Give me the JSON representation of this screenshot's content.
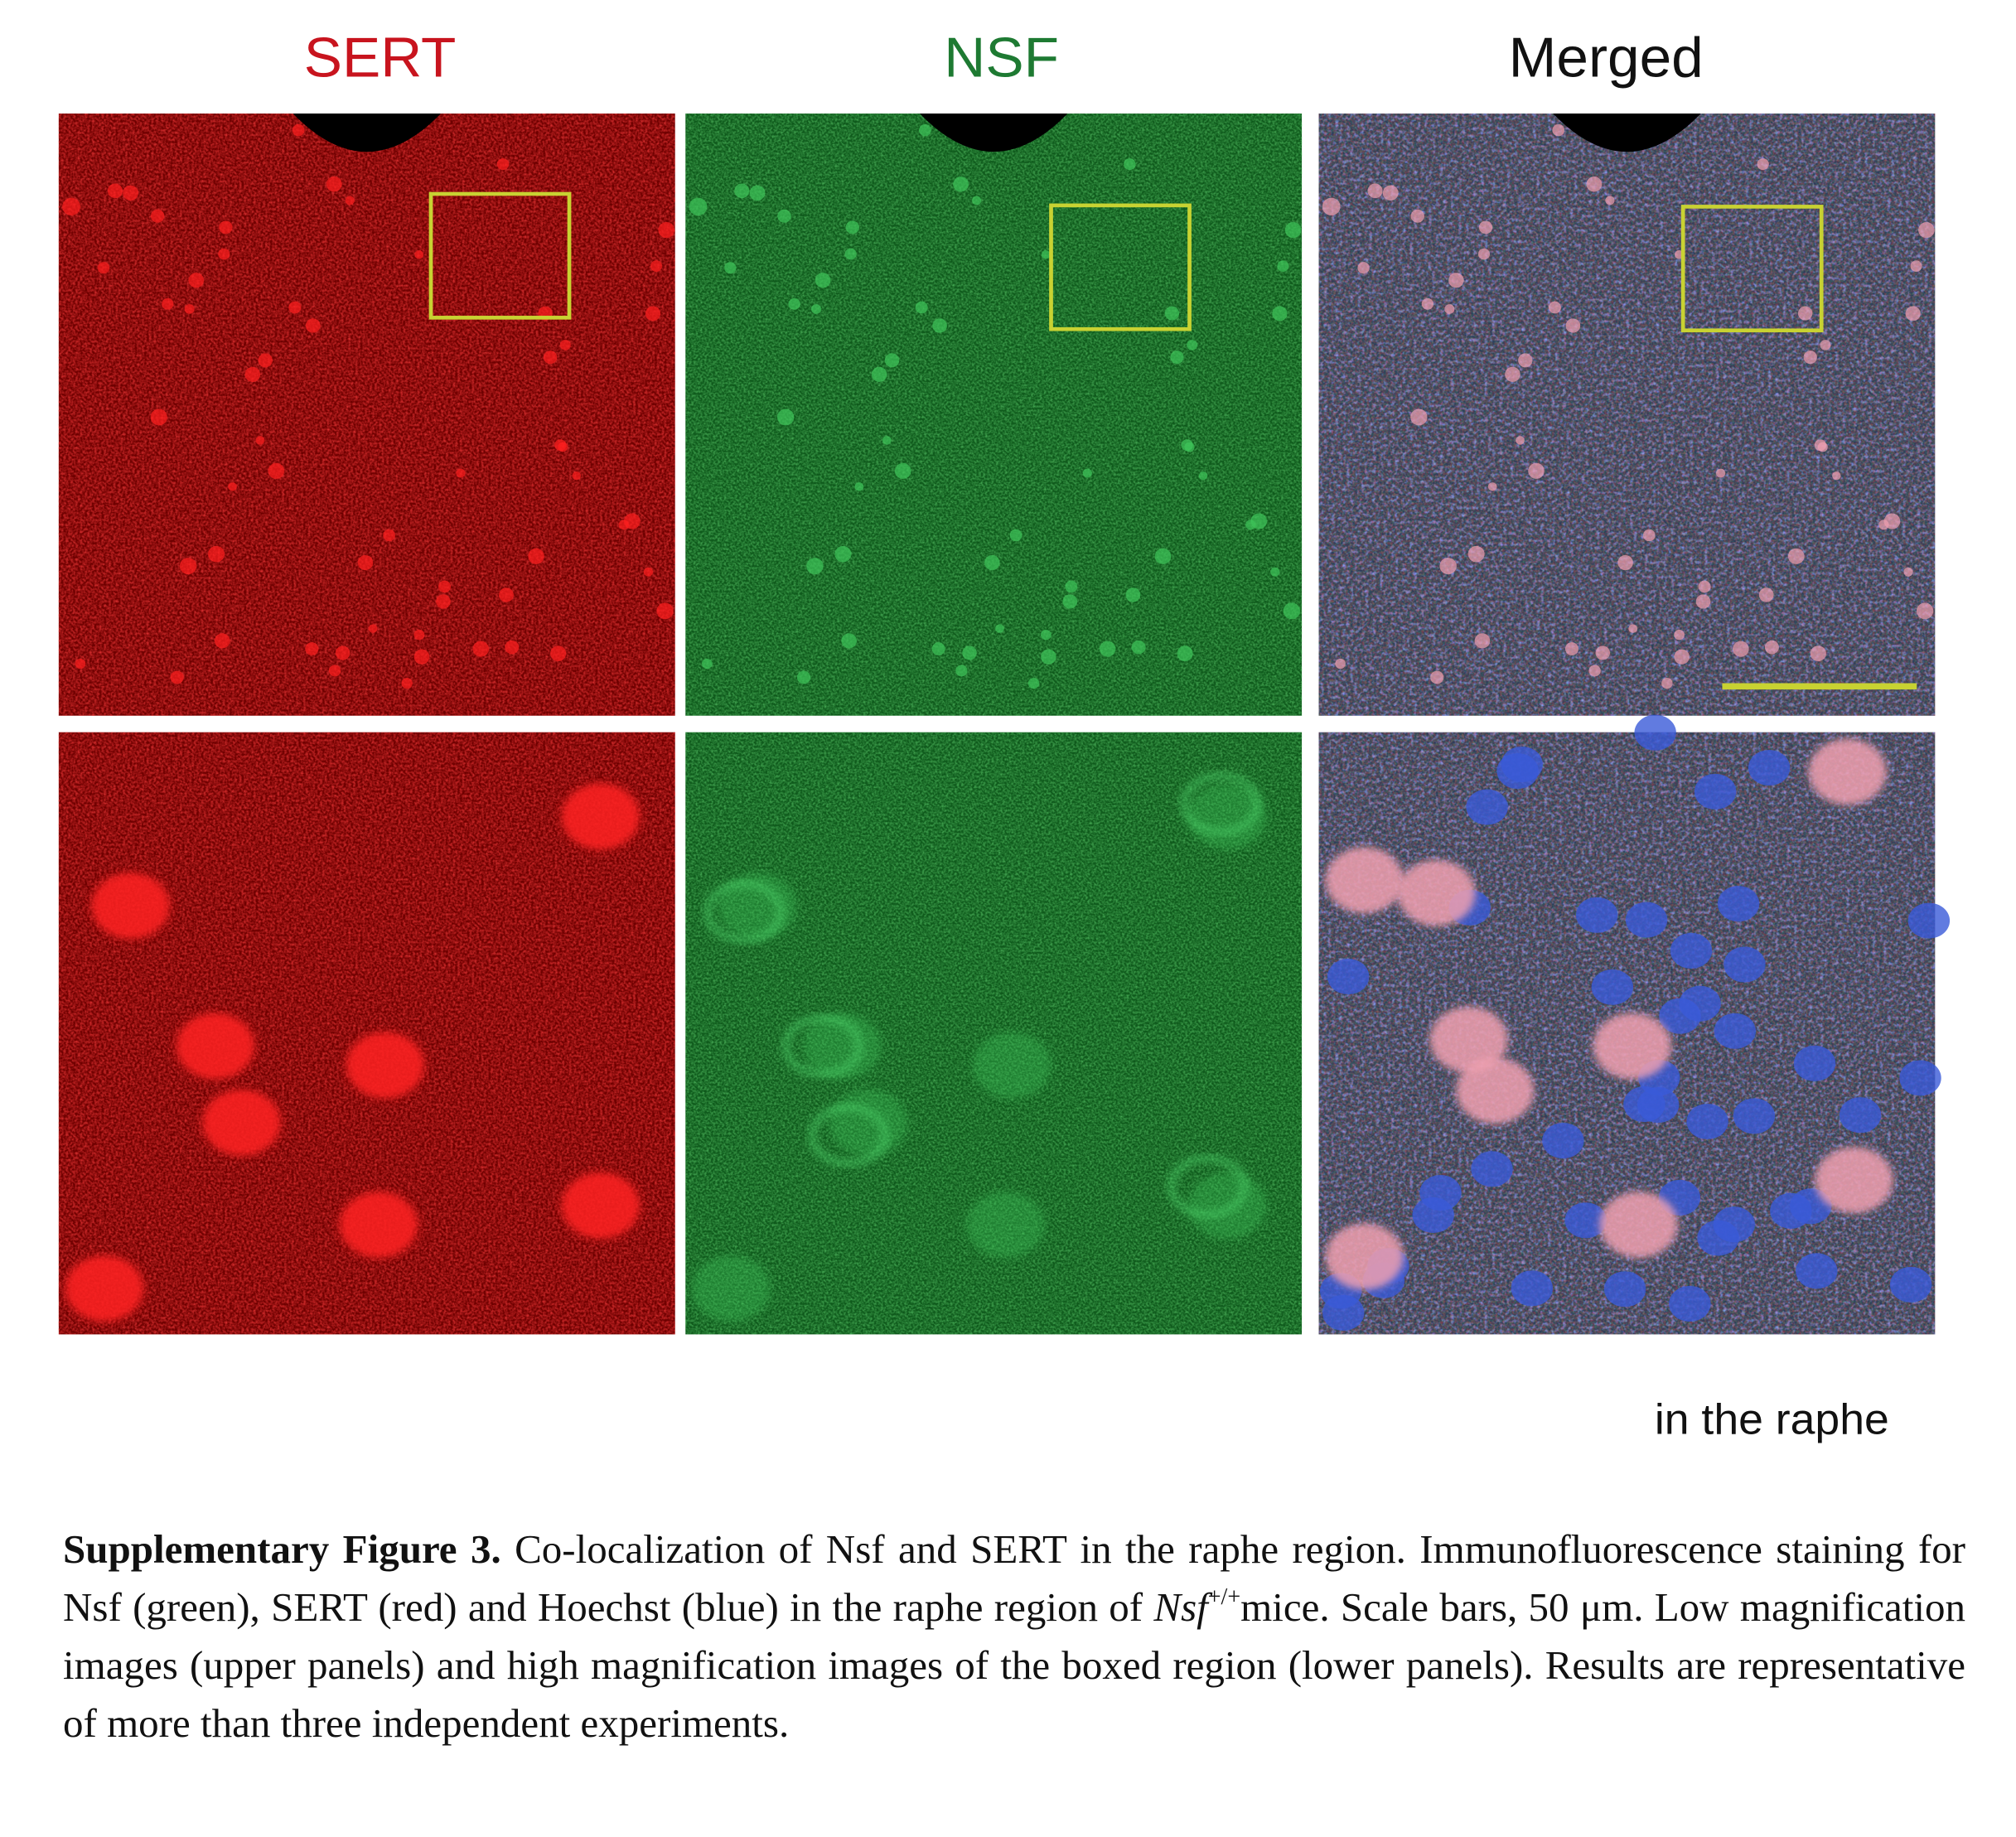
{
  "figure": {
    "columns": [
      "SERT",
      "NSF",
      "Merged"
    ],
    "region_label": "in the raphe"
  },
  "caption": {
    "label": "Supplementary Figure 3.",
    "text1": "Co-localization of Nsf and SERT in the raphe region. Immunofluorescence staining for Nsf (green), SERT (red) and Hoechst (blue) in the raphe region of",
    "gene": "Nsf",
    "genotype": "+/+",
    "text2": "mice. Scale bars, 50 μm. Low magnification images (upper panels) and high magnification images of the boxed region (lower panels). Results are representative of more than three independent experiments."
  }
}
